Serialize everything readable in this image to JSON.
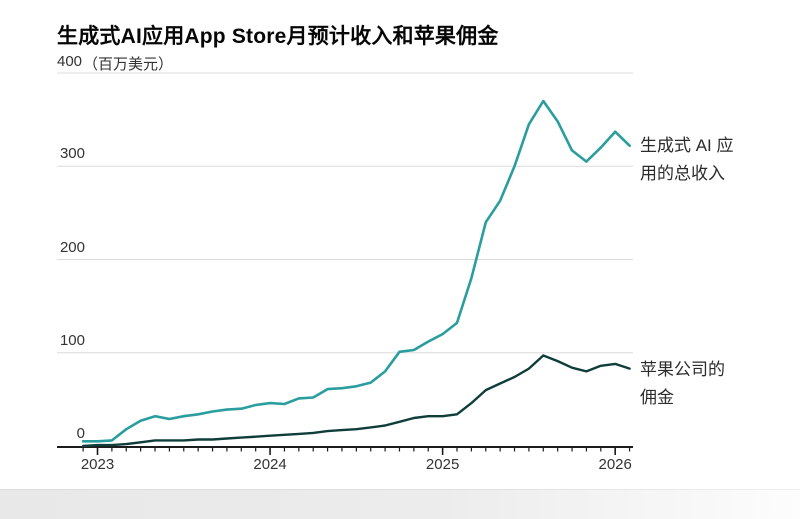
{
  "title": "生成式AI应用App Store月预计收入和苹果佣金",
  "y_axis": {
    "top_value": "400",
    "unit": "（百万美元）",
    "ticks": [
      0,
      100,
      200,
      300,
      400
    ]
  },
  "x_axis": {
    "years": [
      "2023",
      "2024",
      "2025",
      "2026"
    ]
  },
  "annotations": {
    "revenue": {
      "lines": [
        "生成式 AI 应",
        "用的总收入"
      ]
    },
    "commission": {
      "lines": [
        "苹果公司的",
        "佣金"
      ]
    }
  },
  "colors": {
    "revenue": "#2a9d9e",
    "commission": "#0f3e3a",
    "grid": "#dcdcdc",
    "axis": "#1c1c1c",
    "label": "#333333"
  },
  "chart_data": {
    "type": "line",
    "title": "生成式AI应用App Store月预计收入和苹果佣金",
    "xlabel": "",
    "ylabel": "百万美元",
    "ylim": [
      0,
      400
    ],
    "grid": "horizontal-only",
    "legend_position": "right-edge-annotations",
    "x": [
      "2022-12",
      "2023-01",
      "2023-02",
      "2023-03",
      "2023-04",
      "2023-05",
      "2023-06",
      "2023-07",
      "2023-08",
      "2023-09",
      "2023-10",
      "2023-11",
      "2023-12",
      "2024-01",
      "2024-02",
      "2024-03",
      "2024-04",
      "2024-05",
      "2024-06",
      "2024-07",
      "2024-08",
      "2024-09",
      "2024-10",
      "2024-11",
      "2024-12",
      "2025-01",
      "2025-02",
      "2025-03",
      "2025-04",
      "2025-05",
      "2025-06",
      "2025-07",
      "2025-08",
      "2025-09",
      "2025-10",
      "2025-11",
      "2025-12",
      "2026-01",
      "2026-02"
    ],
    "series": [
      {
        "id": "revenue",
        "name": "生成式 AI 应用的总收入",
        "color": "#2a9d9e",
        "values": [
          5,
          5,
          6,
          18,
          27,
          32,
          29,
          32,
          34,
          37,
          39,
          40,
          44,
          46,
          45,
          51,
          52,
          61,
          62,
          64,
          68,
          80,
          101,
          103,
          112,
          120,
          132,
          180,
          240,
          263,
          300,
          345,
          370,
          348,
          317,
          305,
          320,
          337,
          322
        ]
      },
      {
        "id": "commission",
        "name": "苹果公司的佣金",
        "color": "#0f3e3a",
        "values": [
          0,
          1,
          1,
          2,
          4,
          6,
          6,
          6,
          7,
          7,
          8,
          9,
          10,
          11,
          12,
          13,
          14,
          16,
          17,
          18,
          20,
          22,
          26,
          30,
          32,
          32,
          34,
          46,
          60,
          67,
          74,
          83,
          97,
          91,
          84,
          80,
          86,
          88,
          83
        ]
      }
    ]
  }
}
